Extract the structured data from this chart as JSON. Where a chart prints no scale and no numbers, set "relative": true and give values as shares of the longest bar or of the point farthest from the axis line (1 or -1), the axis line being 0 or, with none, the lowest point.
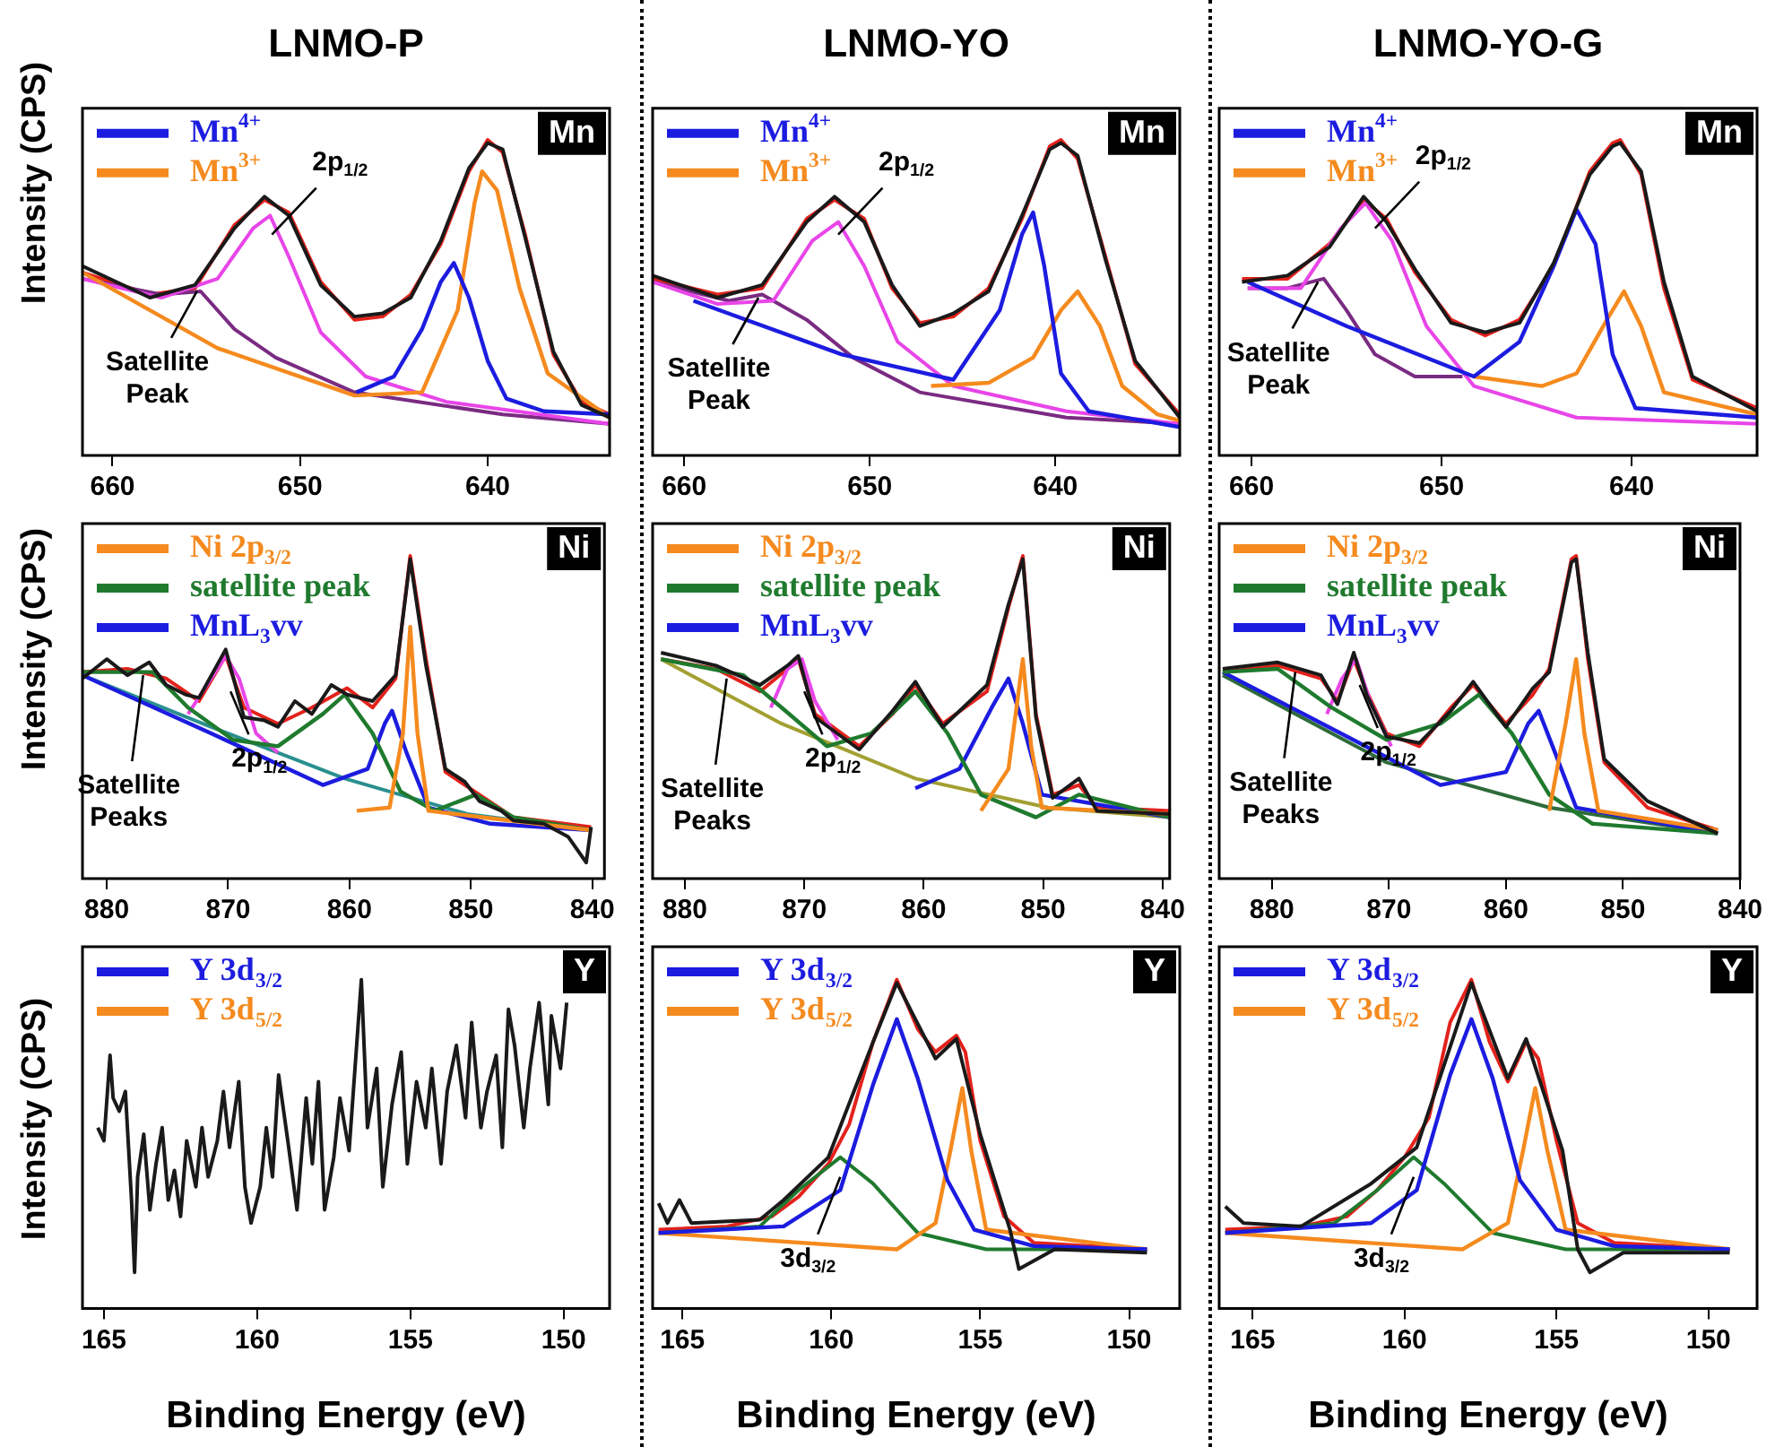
{
  "chart_data": [
    {
      "type": "line",
      "title": "LNMO-P",
      "ylabel": "Intensity (CPS)",
      "relative": true,
      "legend": "top left",
      "xlim": [
        661.6,
        633.5
      ],
      "xticks": [
        660,
        650,
        640
      ],
      "annotations": [
        "Mn",
        {
          "text": "2p$_{1/2}$",
          "x": 651.5,
          "y": 0.7
        },
        {
          "text": "Satellite Peak",
          "x": 655.5,
          "y": 0.52
        }
      ],
      "series": [
        {
          "color": "#1a1a1a",
          "x": [
            661.6,
            658,
            655.6,
            653.5,
            651.9,
            650.6,
            648.9,
            647.1,
            645.6,
            644.1,
            642.5,
            641,
            640,
            639.2,
            638,
            636.5,
            635,
            633.5
          ],
          "values": [
            0.6,
            0.5,
            0.54,
            0.72,
            0.82,
            0.76,
            0.54,
            0.44,
            0.45,
            0.5,
            0.68,
            0.91,
            0.99,
            0.97,
            0.69,
            0.33,
            0.16,
            0.12
          ]
        },
        {
          "name": "Mn$^{4+}$",
          "color": "#1c1ce0",
          "x": [
            647,
            645,
            643.5,
            642.5,
            641.8,
            641,
            640,
            639,
            637,
            633.5
          ],
          "values": [
            0.2,
            0.25,
            0.4,
            0.55,
            0.61,
            0.5,
            0.3,
            0.18,
            0.14,
            0.13
          ]
        },
        {
          "name": "Mn$^{3+}$",
          "color": "#f58a1e",
          "x": [
            661.6,
            654.4,
            647.1,
            643.5,
            641.6,
            640.7,
            640.3,
            639.5,
            638.3,
            636.8,
            633.5
          ],
          "values": [
            0.58,
            0.34,
            0.19,
            0.2,
            0.46,
            0.8,
            0.9,
            0.84,
            0.53,
            0.26,
            0.12
          ]
        },
        {
          "color": "#e845e8",
          "x": [
            661.6,
            657.4,
            654.4,
            652.5,
            651.6,
            650.6,
            648.9,
            646.5,
            642.2,
            633.5
          ],
          "values": [
            0.56,
            0.5,
            0.56,
            0.72,
            0.76,
            0.63,
            0.39,
            0.25,
            0.17,
            0.1
          ]
        },
        {
          "color": "#7a2b82",
          "x": [
            661.6,
            657.4,
            655.3,
            653.5,
            651.3,
            647.1,
            639.2,
            633.5
          ],
          "values": [
            0.56,
            0.51,
            0.52,
            0.4,
            0.31,
            0.2,
            0.13,
            0.1
          ]
        },
        {
          "color": "#e3221c",
          "x": [
            661.6,
            658,
            655.6,
            653.5,
            651.9,
            650.6,
            648.9,
            647.1,
            645.6,
            644.1,
            642.5,
            641,
            640,
            639.2,
            638,
            636.5,
            635,
            633.5
          ],
          "values": [
            0.58,
            0.51,
            0.53,
            0.73,
            0.81,
            0.77,
            0.55,
            0.43,
            0.44,
            0.51,
            0.67,
            0.9,
            1.0,
            0.96,
            0.7,
            0.32,
            0.17,
            0.13
          ]
        }
      ]
    },
    {
      "type": "line",
      "title": "LNMO-YO",
      "relative": true,
      "legend": "top left",
      "xlim": [
        661.7,
        633.3
      ],
      "xticks": [
        660,
        650,
        640
      ],
      "annotations": [
        "Mn",
        {
          "text": "2p$_{1/2}$",
          "x": 651.7,
          "y": 0.7
        },
        {
          "text": "Satellite Peak",
          "x": 656,
          "y": 0.5
        }
      ],
      "series": [
        {
          "color": "#1a1a1a",
          "x": [
            661.7,
            658.2,
            655.8,
            653.4,
            651.9,
            650.3,
            648.8,
            647.3,
            645.5,
            643.6,
            641.8,
            640.3,
            639.7,
            638.8,
            637.3,
            635.7,
            633.3
          ],
          "values": [
            0.57,
            0.5,
            0.54,
            0.74,
            0.82,
            0.74,
            0.54,
            0.41,
            0.45,
            0.52,
            0.76,
            0.97,
            0.99,
            0.95,
            0.62,
            0.3,
            0.12
          ]
        },
        {
          "name": "Mn$^{4+}$",
          "color": "#1c1ce0",
          "x": [
            659.5,
            651.5,
            645.5,
            643,
            641.8,
            641.2,
            640.6,
            639.7,
            638.2,
            633.3
          ],
          "values": [
            0.49,
            0.32,
            0.24,
            0.46,
            0.7,
            0.77,
            0.6,
            0.26,
            0.14,
            0.09
          ]
        },
        {
          "name": "Mn$^{3+}$",
          "color": "#f58a1e",
          "x": [
            646.7,
            643.6,
            641.2,
            639.7,
            638.8,
            637.6,
            636.4,
            634.5,
            633.3
          ],
          "values": [
            0.22,
            0.23,
            0.31,
            0.46,
            0.52,
            0.41,
            0.22,
            0.13,
            0.11
          ]
        },
        {
          "color": "#e845e8",
          "x": [
            661.7,
            658.2,
            655.2,
            653.1,
            651.7,
            650.3,
            648.5,
            645.5,
            639.4,
            633.3
          ],
          "values": [
            0.55,
            0.48,
            0.49,
            0.68,
            0.74,
            0.6,
            0.36,
            0.22,
            0.14,
            0.1
          ]
        },
        {
          "color": "#7a2b82",
          "x": [
            661.7,
            657.6,
            655.8,
            653.4,
            650.9,
            647.3,
            639.4,
            633.3
          ],
          "values": [
            0.55,
            0.49,
            0.51,
            0.43,
            0.31,
            0.2,
            0.12,
            0.1
          ]
        },
        {
          "color": "#e3221c",
          "x": [
            661.7,
            658.2,
            655.8,
            653.4,
            651.9,
            650.3,
            648.8,
            647.3,
            645.5,
            643.6,
            641.8,
            640.3,
            639.7,
            638.8,
            637.3,
            635.7,
            633.3
          ],
          "values": [
            0.56,
            0.51,
            0.53,
            0.75,
            0.81,
            0.75,
            0.53,
            0.42,
            0.44,
            0.53,
            0.75,
            0.98,
            1.0,
            0.94,
            0.63,
            0.29,
            0.13
          ]
        }
      ]
    },
    {
      "type": "line",
      "title": "LNMO-YO-G",
      "relative": true,
      "legend": "top left",
      "xlim": [
        661.7,
        633.4
      ],
      "xticks": [
        660,
        650,
        640
      ],
      "annotations": [
        "Mn",
        {
          "text": "2p$_{1/2}$",
          "x": 653.5,
          "y": 0.72
        },
        {
          "text": "Satellite Peak",
          "x": 656.5,
          "y": 0.55
        }
      ],
      "series": [
        {
          "color": "#1a1a1a",
          "x": [
            660.5,
            658.1,
            655.9,
            654.1,
            652.9,
            651.4,
            649.5,
            647.7,
            645.9,
            644.1,
            642.2,
            641,
            640.6,
            639.5,
            638.3,
            636.8,
            633.4
          ],
          "values": [
            0.55,
            0.57,
            0.66,
            0.82,
            0.74,
            0.59,
            0.42,
            0.39,
            0.42,
            0.61,
            0.89,
            0.98,
            0.99,
            0.9,
            0.55,
            0.25,
            0.14
          ]
        },
        {
          "name": "Mn$^{4+}$",
          "color": "#1c1ce0",
          "x": [
            660.2,
            655,
            648.3,
            645.9,
            644.1,
            642.9,
            641.9,
            641,
            639.8,
            633.4
          ],
          "values": [
            0.55,
            0.41,
            0.25,
            0.36,
            0.6,
            0.78,
            0.67,
            0.32,
            0.15,
            0.12
          ]
        },
        {
          "name": "Mn$^{3+}$",
          "color": "#f58a1e",
          "x": [
            648.3,
            644.7,
            642.9,
            641.3,
            640.4,
            639.5,
            638.3,
            633.4
          ],
          "values": [
            0.25,
            0.22,
            0.26,
            0.43,
            0.52,
            0.41,
            0.2,
            0.13
          ]
        },
        {
          "color": "#e845e8",
          "x": [
            660.2,
            657.4,
            655.3,
            654,
            652.6,
            650.8,
            648.3,
            642.9,
            633.4
          ],
          "values": [
            0.53,
            0.53,
            0.72,
            0.8,
            0.68,
            0.41,
            0.22,
            0.12,
            0.1
          ]
        },
        {
          "color": "#7a2b82",
          "x": [
            660.2,
            658.1,
            656.2,
            655,
            653.5,
            651.4,
            648.9
          ],
          "values": [
            0.53,
            0.53,
            0.56,
            0.46,
            0.32,
            0.25,
            0.25
          ]
        },
        {
          "color": "#e3221c",
          "x": [
            660.5,
            658.1,
            655.9,
            654.1,
            652.9,
            651.4,
            649.5,
            647.7,
            645.9,
            644.1,
            642.2,
            641,
            640.6,
            639.5,
            638.3,
            636.8,
            633.4
          ],
          "values": [
            0.56,
            0.56,
            0.67,
            0.81,
            0.75,
            0.58,
            0.43,
            0.38,
            0.43,
            0.6,
            0.9,
            0.99,
            1.0,
            0.89,
            0.53,
            0.24,
            0.15
          ]
        }
      ]
    },
    {
      "type": "line",
      "ylabel": "Intensity (CPS)",
      "relative": true,
      "legend": "top left",
      "xlim": [
        882,
        839
      ],
      "xticks": [
        880,
        870,
        860,
        850,
        840
      ],
      "annotations": [
        "Ni",
        {
          "text": "2p$_{1/2}$",
          "x": 869.8,
          "y": 0.58
        },
        {
          "text": "Satellite Peaks",
          "x": 877,
          "y": 0.63
        }
      ],
      "series": [
        {
          "color": "#1a1a1a",
          "x": [
            882,
            880,
            878.3,
            876.5,
            875.1,
            873.5,
            872.4,
            870.2,
            868.7,
            867,
            865.9,
            864.5,
            863.1,
            861.5,
            860.2,
            858.1,
            856.2,
            855,
            853.7,
            852.1,
            850.5,
            849.3,
            847.5,
            846.5,
            844,
            842,
            840.5,
            840.1
          ],
          "values": [
            0.62,
            0.68,
            0.63,
            0.67,
            0.6,
            0.57,
            0.56,
            0.71,
            0.5,
            0.49,
            0.47,
            0.55,
            0.51,
            0.6,
            0.57,
            0.55,
            0.63,
            0.99,
            0.66,
            0.34,
            0.3,
            0.24,
            0.21,
            0.18,
            0.17,
            0.13,
            0.05,
            0.16
          ]
        },
        {
          "name": "Ni 2p$_{3/2}$",
          "color": "#f58a1e",
          "x": [
            859.4,
            856.7,
            855.6,
            855,
            854.4,
            853.5,
            840.1
          ],
          "values": [
            0.21,
            0.22,
            0.45,
            0.78,
            0.45,
            0.21,
            0.15
          ]
        },
        {
          "name": "satellite peak",
          "color": "#1f7a2e",
          "x": [
            882,
            876.2,
            873.3,
            869.6,
            865.9,
            862.2,
            860.4,
            858.1,
            855.8,
            853,
            849.6,
            846.5,
            840.1
          ],
          "values": [
            0.64,
            0.64,
            0.53,
            0.43,
            0.41,
            0.51,
            0.57,
            0.45,
            0.27,
            0.21,
            0.26,
            0.19,
            0.15
          ]
        },
        {
          "name": "MnL$_{3}$vv",
          "color": "#1c1ce0",
          "x": [
            882,
            871.4,
            862.2,
            858.5,
            857.1,
            856.5,
            855.3,
            853.5,
            848.4,
            840.1
          ],
          "values": [
            0.63,
            0.45,
            0.29,
            0.34,
            0.48,
            0.52,
            0.39,
            0.22,
            0.17,
            0.15
          ]
        },
        {
          "color": "#e845e8",
          "x": [
            873.3,
            871.4,
            870.2,
            869.1,
            867.7,
            865.9
          ],
          "values": [
            0.51,
            0.62,
            0.69,
            0.62,
            0.45,
            0.39
          ]
        },
        {
          "color": "#2a8f8f",
          "x": [
            882,
            871.4,
            860.4,
            850.3,
            840.1
          ],
          "values": [
            0.63,
            0.47,
            0.31,
            0.2,
            0.15
          ]
        },
        {
          "color": "#e3221c",
          "x": [
            882,
            878.3,
            875.1,
            872.4,
            870.2,
            868.7,
            865.9,
            863.1,
            860.2,
            858.1,
            856.2,
            855,
            853.7,
            852.1,
            849.3,
            846.5,
            840.1
          ],
          "values": [
            0.64,
            0.65,
            0.62,
            0.55,
            0.69,
            0.53,
            0.48,
            0.53,
            0.59,
            0.53,
            0.62,
            1.0,
            0.68,
            0.33,
            0.26,
            0.19,
            0.16
          ]
        }
      ]
    },
    {
      "type": "line",
      "relative": true,
      "legend": "top left",
      "xlim": [
        882.7,
        839.4
      ],
      "xticks": [
        880,
        870,
        860,
        850,
        840
      ],
      "annotations": [
        "Ni",
        {
          "text": "2p$_{1/2}$",
          "x": 870,
          "y": 0.58
        },
        {
          "text": "Satellite Peaks",
          "x": 876.5,
          "y": 0.62
        }
      ],
      "series": [
        {
          "color": "#1a1a1a",
          "x": [
            882,
            877.4,
            873.7,
            871.4,
            870.5,
            869.1,
            865.4,
            862.6,
            860.7,
            858.4,
            854.7,
            852.9,
            851.7,
            850.6,
            849.2,
            847,
            845.5,
            839.4
          ],
          "values": [
            0.7,
            0.66,
            0.6,
            0.66,
            0.69,
            0.5,
            0.4,
            0.52,
            0.61,
            0.47,
            0.6,
            0.85,
            0.99,
            0.5,
            0.25,
            0.31,
            0.21,
            0.2
          ]
        },
        {
          "name": "Ni 2p$_{3/2}$",
          "color": "#f58a1e",
          "x": [
            855.2,
            852.9,
            851.7,
            851,
            850.1,
            839.4
          ],
          "values": [
            0.21,
            0.34,
            0.68,
            0.41,
            0.22,
            0.2
          ]
        },
        {
          "name": "satellite peak",
          "color": "#1f7a2e",
          "x": [
            882,
            875.1,
            871.9,
            868.1,
            864.4,
            860.7,
            858,
            855.2,
            850.6,
            847,
            839.4
          ],
          "values": [
            0.68,
            0.63,
            0.53,
            0.41,
            0.45,
            0.58,
            0.45,
            0.26,
            0.19,
            0.26,
            0.19
          ]
        },
        {
          "name": "MnL$_{3}$vv",
          "color": "#1c1ce0",
          "x": [
            860.7,
            857,
            854.3,
            852.9,
            851.7,
            850.1,
            839.4
          ],
          "values": [
            0.28,
            0.34,
            0.53,
            0.62,
            0.48,
            0.26,
            0.19
          ]
        },
        {
          "color": "#e845e8",
          "x": [
            872.8,
            871.4,
            870.2,
            869.1,
            867.2
          ],
          "values": [
            0.53,
            0.65,
            0.68,
            0.55,
            0.43
          ]
        },
        {
          "color": "#a3a032",
          "x": [
            882,
            871.9,
            860.7,
            849.6,
            839.4
          ],
          "values": [
            0.68,
            0.48,
            0.31,
            0.22,
            0.19
          ]
        },
        {
          "color": "#e3221c",
          "x": [
            882,
            877.4,
            873.7,
            871.4,
            870.5,
            869.1,
            865.4,
            862.6,
            860.7,
            858.4,
            854.7,
            852.9,
            851.7,
            850.6,
            849.2,
            847,
            845.5,
            839.4
          ],
          "values": [
            0.68,
            0.65,
            0.58,
            0.65,
            0.68,
            0.51,
            0.41,
            0.51,
            0.6,
            0.48,
            0.58,
            0.84,
            1.0,
            0.51,
            0.26,
            0.29,
            0.22,
            0.21
          ]
        }
      ]
    },
    {
      "type": "line",
      "relative": true,
      "legend": "top left",
      "xlim": [
        884.5,
        840
      ],
      "xticks": [
        880,
        870,
        860,
        850,
        840
      ],
      "annotations": [
        "Ni",
        {
          "text": "2p$_{1/2}$",
          "x": 872.5,
          "y": 0.6
        },
        {
          "text": "Satellite Peaks",
          "x": 878,
          "y": 0.64
        }
      ],
      "series": [
        {
          "color": "#1a1a1a",
          "x": [
            884.2,
            879.5,
            875.8,
            874.4,
            873,
            871.9,
            870.2,
            867.4,
            864.7,
            862.8,
            860,
            857.7,
            856.3,
            854.4,
            854,
            853,
            851.6,
            847.9,
            841.9
          ],
          "values": [
            0.65,
            0.67,
            0.63,
            0.54,
            0.7,
            0.57,
            0.44,
            0.42,
            0.52,
            0.61,
            0.47,
            0.59,
            0.64,
            0.98,
            0.99,
            0.7,
            0.37,
            0.24,
            0.14
          ]
        },
        {
          "name": "Ni 2p$_{3/2}$",
          "color": "#f58a1e",
          "x": [
            856.3,
            854.9,
            854,
            853.3,
            852.1,
            841.9
          ],
          "values": [
            0.21,
            0.48,
            0.68,
            0.45,
            0.21,
            0.15
          ]
        },
        {
          "name": "satellite peak",
          "color": "#1f7a2e",
          "x": [
            884.2,
            879.5,
            874.9,
            870.2,
            865.6,
            862.3,
            859.5,
            856.3,
            852.6,
            841.9
          ],
          "values": [
            0.64,
            0.65,
            0.53,
            0.43,
            0.48,
            0.57,
            0.45,
            0.26,
            0.17,
            0.14
          ]
        },
        {
          "name": "MnL$_{3}$vv",
          "color": "#1c1ce0",
          "x": [
            884.2,
            865.6,
            860,
            858.1,
            857.2,
            855.8,
            854,
            841.9
          ],
          "values": [
            0.64,
            0.29,
            0.33,
            0.48,
            0.52,
            0.39,
            0.22,
            0.14
          ]
        },
        {
          "color": "#e845e8",
          "x": [
            875.3,
            874,
            872.8,
            871.6,
            869.8
          ],
          "values": [
            0.51,
            0.62,
            0.68,
            0.55,
            0.41
          ]
        },
        {
          "color": "#2e6b3a",
          "x": [
            884.2,
            870.2,
            856.3,
            841.9
          ],
          "values": [
            0.63,
            0.36,
            0.22,
            0.14
          ]
        },
        {
          "color": "#e3221c",
          "x": [
            884.2,
            879.5,
            875.8,
            874.4,
            873,
            871.9,
            870.2,
            867.4,
            864.7,
            862.8,
            860,
            857.7,
            856.3,
            854.4,
            854,
            853,
            851.6,
            847.9,
            841.9
          ],
          "values": [
            0.64,
            0.66,
            0.62,
            0.55,
            0.68,
            0.58,
            0.45,
            0.41,
            0.53,
            0.6,
            0.48,
            0.57,
            0.65,
            0.99,
            1.0,
            0.68,
            0.36,
            0.22,
            0.15
          ]
        }
      ]
    },
    {
      "type": "line",
      "ylabel": "Intensity (CPS)",
      "xlabel": "Binding Energy (eV)",
      "relative": true,
      "legend": "top left",
      "xlim": [
        165.7,
        148.5
      ],
      "xticks": [
        165,
        160,
        155,
        150
      ],
      "annotations": [
        "Y"
      ],
      "series": [
        {
          "color": "#1a1a1a",
          "x": [
            165.2,
            165,
            164.8,
            164.7,
            164.5,
            164.3,
            164.1,
            164,
            163.9,
            163.7,
            163.5,
            163.3,
            163.1,
            162.9,
            162.7,
            162.5,
            162.3,
            162,
            161.8,
            161.6,
            161.3,
            161.1,
            160.9,
            160.6,
            160.4,
            160.2,
            159.9,
            159.7,
            159.5,
            159.3,
            159,
            158.7,
            158.4,
            158.2,
            158,
            157.8,
            157.5,
            157.3,
            157,
            156.6,
            156.4,
            156.1,
            155.9,
            155.6,
            155.3,
            155.1,
            154.8,
            154.5,
            154.3,
            154,
            153.8,
            153.5,
            153.2,
            153,
            152.7,
            152.5,
            152.2,
            152,
            151.8,
            151.6,
            151.3,
            151.1,
            150.8,
            150.5,
            150.4,
            150.1,
            149.9
          ],
          "values": [
            0.55,
            0.51,
            0.77,
            0.64,
            0.6,
            0.66,
            0.33,
            0.11,
            0.4,
            0.53,
            0.3,
            0.44,
            0.55,
            0.33,
            0.42,
            0.28,
            0.51,
            0.37,
            0.55,
            0.4,
            0.51,
            0.66,
            0.49,
            0.69,
            0.37,
            0.26,
            0.37,
            0.55,
            0.4,
            0.71,
            0.51,
            0.3,
            0.64,
            0.44,
            0.69,
            0.3,
            0.46,
            0.64,
            0.48,
            1.0,
            0.55,
            0.73,
            0.37,
            0.62,
            0.78,
            0.44,
            0.69,
            0.55,
            0.73,
            0.44,
            0.66,
            0.8,
            0.58,
            0.87,
            0.55,
            0.66,
            0.77,
            0.49,
            0.91,
            0.8,
            0.55,
            0.73,
            0.93,
            0.62,
            0.89,
            0.73,
            0.93
          ]
        },
        {
          "name": "Y 3d$_{3/2}$",
          "color": "#1c1ce0"
        },
        {
          "name": "Y 3d$_{5/2}$",
          "color": "#f58a1e"
        }
      ]
    },
    {
      "type": "line",
      "xlabel": "Binding Energy (eV)",
      "relative": true,
      "legend": "top left",
      "xlim": [
        166,
        148.3
      ],
      "xticks": [
        165,
        160,
        155,
        150
      ],
      "annotations": [
        "Y",
        {
          "text": "3d$_{3/2}$",
          "x": 159.7,
          "y": 0.4
        }
      ],
      "series": [
        {
          "color": "#1a1a1a",
          "x": [
            165.8,
            165.5,
            165.1,
            164.7,
            162.4,
            161.6,
            160.1,
            158.6,
            157.8,
            156.5,
            155.8,
            155,
            154,
            153.7,
            152.5,
            149.4
          ],
          "values": [
            0.32,
            0.26,
            0.33,
            0.26,
            0.27,
            0.33,
            0.46,
            0.81,
            0.99,
            0.76,
            0.82,
            0.53,
            0.24,
            0.12,
            0.18,
            0.17
          ]
        },
        {
          "name": "Y 3d$_{3/2}$",
          "color": "#1c1ce0",
          "x": [
            165.8,
            161.6,
            159.7,
            158.6,
            157.8,
            157.1,
            156.1,
            155.2,
            153.2,
            149.4
          ],
          "values": [
            0.23,
            0.25,
            0.36,
            0.68,
            0.88,
            0.7,
            0.39,
            0.24,
            0.19,
            0.18
          ]
        },
        {
          "name": "Y 3d$_{5/2}$",
          "color": "#f58a1e",
          "x": [
            165.8,
            157.8,
            156.5,
            156,
            155.6,
            155.3,
            154.8,
            149.4
          ],
          "values": [
            0.23,
            0.18,
            0.26,
            0.48,
            0.67,
            0.48,
            0.24,
            0.18
          ]
        },
        {
          "color": "#1f7a2e",
          "x": [
            165.8,
            162.4,
            161.1,
            159.7,
            158.6,
            157.1,
            154.8,
            149.4
          ],
          "values": [
            0.23,
            0.25,
            0.36,
            0.46,
            0.38,
            0.23,
            0.18,
            0.18
          ]
        },
        {
          "color": "#e3221c",
          "x": [
            165.8,
            163.5,
            162,
            161.1,
            160.1,
            159.4,
            158.6,
            157.8,
            157.1,
            156.5,
            155.8,
            155.5,
            155,
            154.2,
            153.2,
            149.4
          ],
          "values": [
            0.24,
            0.25,
            0.28,
            0.34,
            0.44,
            0.56,
            0.81,
            1.0,
            0.85,
            0.78,
            0.83,
            0.78,
            0.51,
            0.28,
            0.2,
            0.18
          ]
        }
      ]
    },
    {
      "type": "line",
      "xlabel": "Binding Energy (eV)",
      "relative": true,
      "legend": "top left",
      "xlim": [
        166.1,
        148.4
      ],
      "xticks": [
        165,
        160,
        155,
        150
      ],
      "annotations": [
        "Y",
        {
          "text": "3d$_{3/2}$",
          "x": 159.7,
          "y": 0.4
        }
      ],
      "series": [
        {
          "color": "#1a1a1a",
          "x": [
            165.9,
            165.3,
            163.4,
            161.1,
            159.6,
            157.8,
            156.6,
            156,
            154.8,
            154.3,
            153.9,
            152.8,
            149.3
          ],
          "values": [
            0.31,
            0.26,
            0.25,
            0.38,
            0.49,
            0.99,
            0.7,
            0.82,
            0.48,
            0.18,
            0.11,
            0.17,
            0.17
          ]
        },
        {
          "name": "Y 3d$_{3/2}$",
          "color": "#1c1ce0",
          "x": [
            165.9,
            161.1,
            159.6,
            158.5,
            157.8,
            157.1,
            156.2,
            155,
            153.1,
            149.3
          ],
          "values": [
            0.23,
            0.26,
            0.36,
            0.71,
            0.88,
            0.7,
            0.39,
            0.24,
            0.19,
            0.18
          ]
        },
        {
          "name": "Y 3d$_{5/2}$",
          "color": "#f58a1e",
          "x": [
            165.9,
            158.1,
            156.6,
            156.1,
            155.7,
            155.3,
            154.7,
            149.3
          ],
          "values": [
            0.23,
            0.18,
            0.26,
            0.48,
            0.67,
            0.48,
            0.24,
            0.18
          ]
        },
        {
          "color": "#1f7a2e",
          "x": [
            165.9,
            162.3,
            160.9,
            159.7,
            158.7,
            157.1,
            154.7,
            149.3
          ],
          "values": [
            0.23,
            0.26,
            0.36,
            0.46,
            0.38,
            0.23,
            0.18,
            0.18
          ]
        },
        {
          "color": "#e3221c",
          "x": [
            165.9,
            163.4,
            161.9,
            160.9,
            160,
            159.2,
            158.5,
            157.8,
            157.2,
            156.6,
            156,
            155.6,
            155,
            154.3,
            153.1,
            149.3
          ],
          "values": [
            0.24,
            0.25,
            0.28,
            0.36,
            0.46,
            0.58,
            0.87,
            1.0,
            0.81,
            0.69,
            0.81,
            0.76,
            0.51,
            0.26,
            0.2,
            0.18
          ]
        }
      ]
    }
  ]
}
